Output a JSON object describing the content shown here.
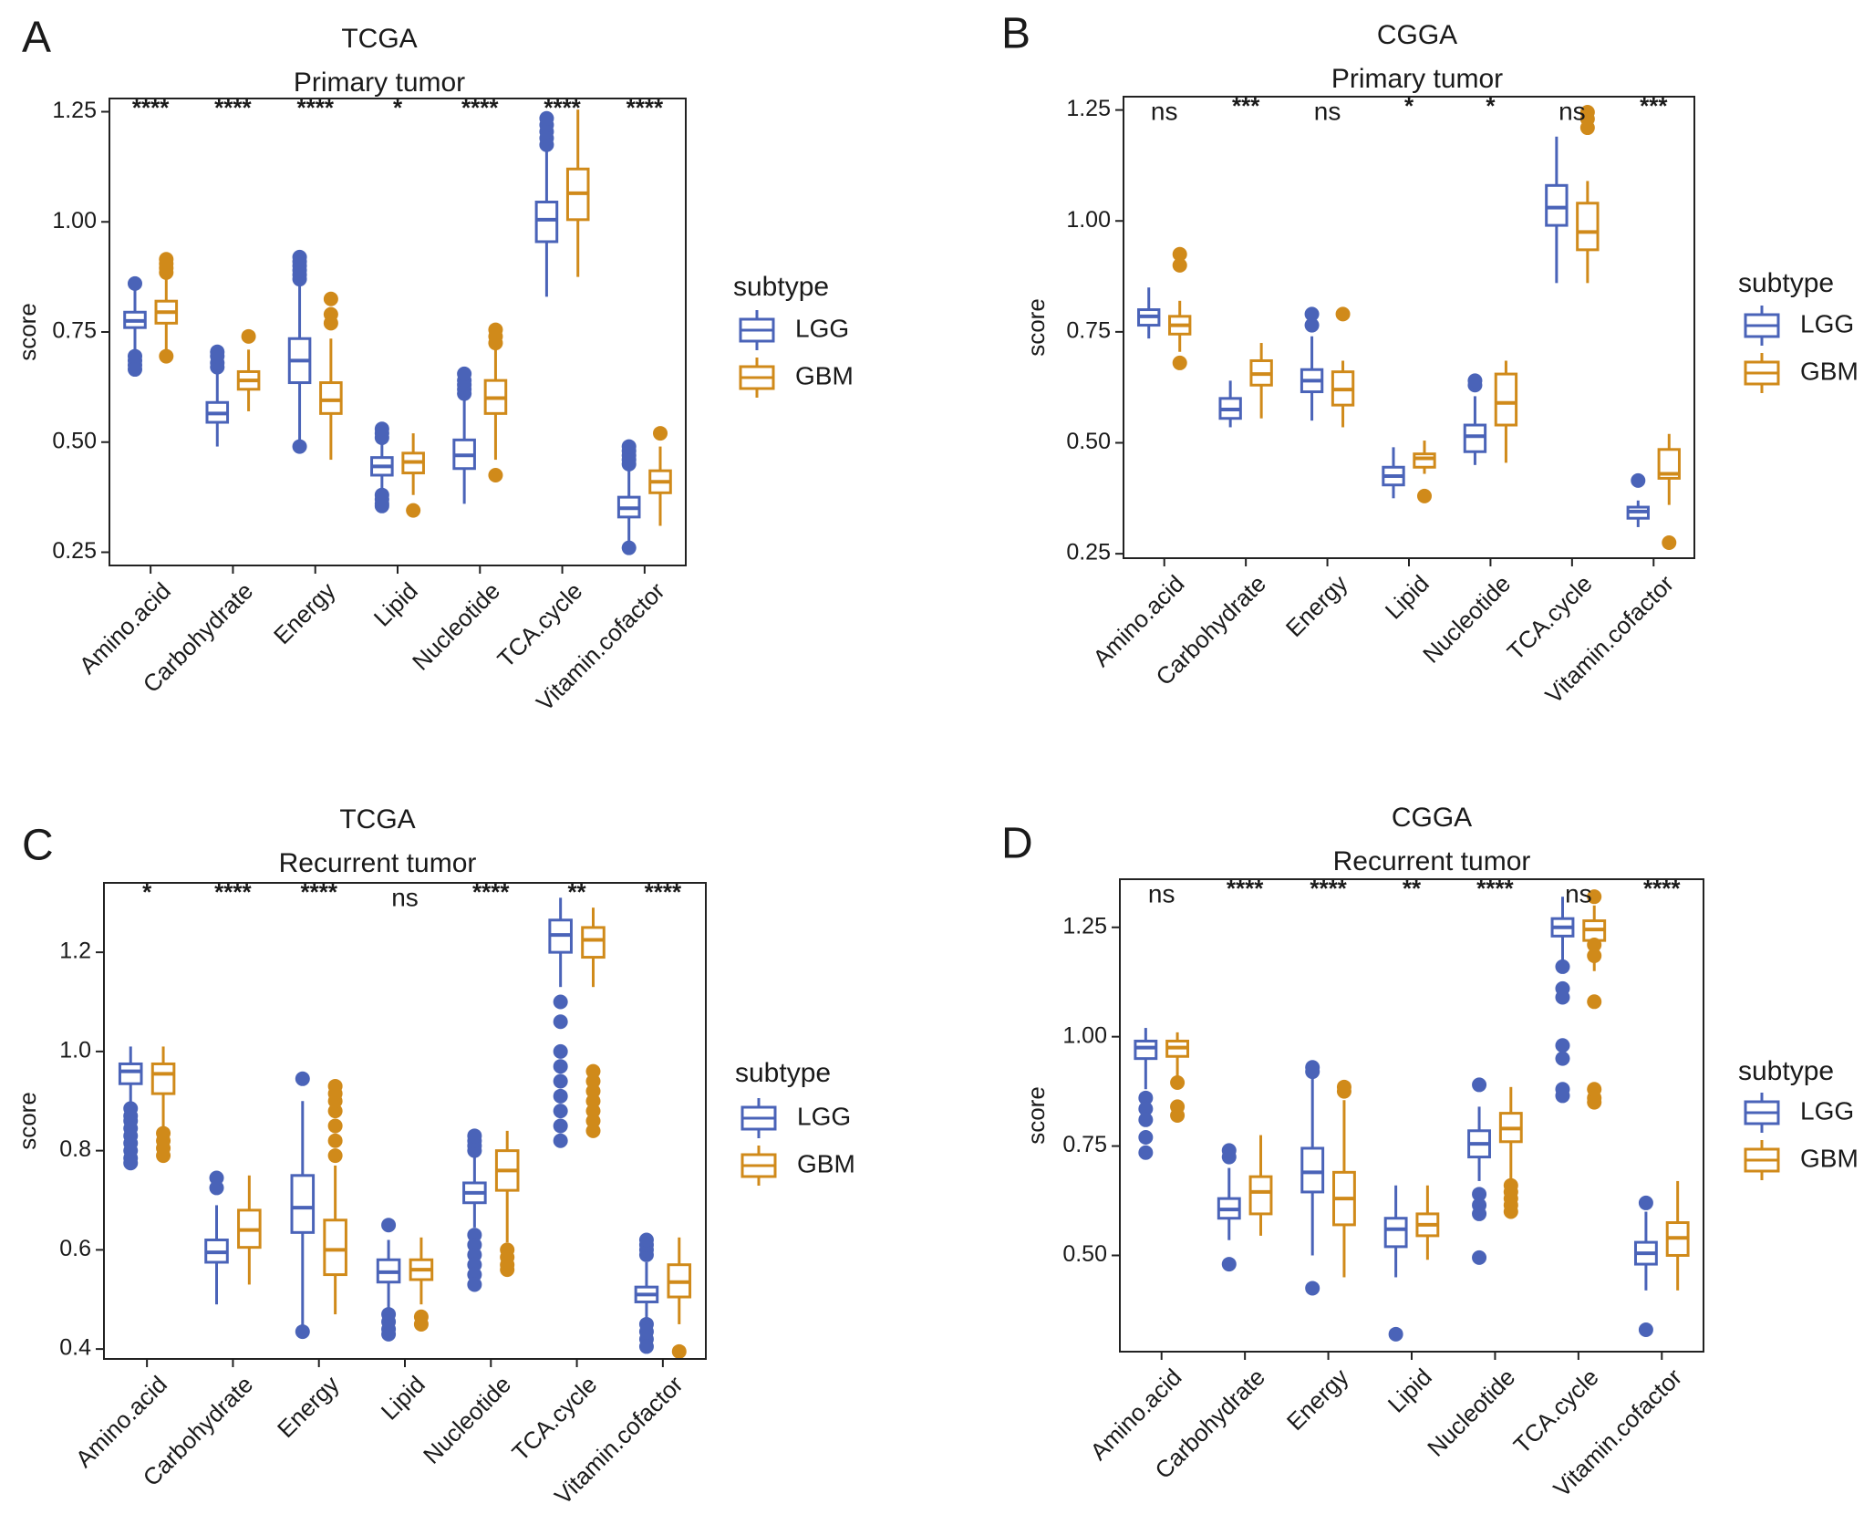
{
  "legend": {
    "title": "subtype",
    "entries": [
      {
        "name": "LGG",
        "color": "#4A63B8"
      },
      {
        "name": "GBM",
        "color": "#D08A1A"
      }
    ]
  },
  "y_axis_label": "score",
  "categories": [
    "Amino.acid",
    "Carbohydrate",
    "Energy",
    "Lipid",
    "Nucleotide",
    "TCA.cycle",
    "Vitamin.cofactor"
  ],
  "chart_data": [
    {
      "panel_letter": "A",
      "type": "boxplot",
      "title": "TCGA",
      "subtitle": "Primary tumor",
      "ylabel": "score",
      "ylim": [
        0.22,
        1.28
      ],
      "yticks": [
        0.25,
        0.5,
        0.75,
        1.0,
        1.25
      ],
      "ytick_labels": [
        "0.25",
        "0.50",
        "0.75",
        "1.00",
        "1.25"
      ],
      "significance": [
        "****",
        "****",
        "****",
        "*",
        "****",
        "****",
        "****"
      ],
      "series": [
        {
          "name": "LGG",
          "boxes": [
            {
              "wlo": 0.69,
              "q1": 0.76,
              "med": 0.775,
              "q3": 0.795,
              "whi": 0.85,
              "outliers": [
                0.86,
                0.695,
                0.685,
                0.675,
                0.665
              ]
            },
            {
              "wlo": 0.49,
              "q1": 0.545,
              "med": 0.565,
              "q3": 0.59,
              "whi": 0.655,
              "outliers": [
                0.67,
                0.68,
                0.695,
                0.705
              ]
            },
            {
              "wlo": 0.49,
              "q1": 0.635,
              "med": 0.685,
              "q3": 0.735,
              "whi": 0.855,
              "outliers": [
                0.87,
                0.88,
                0.89,
                0.9,
                0.91,
                0.92,
                0.49
              ]
            },
            {
              "wlo": 0.38,
              "q1": 0.425,
              "med": 0.445,
              "q3": 0.465,
              "whi": 0.505,
              "outliers": [
                0.51,
                0.52,
                0.53,
                0.38,
                0.37,
                0.36,
                0.355
              ]
            },
            {
              "wlo": 0.36,
              "q1": 0.44,
              "med": 0.47,
              "q3": 0.505,
              "whi": 0.6,
              "outliers": [
                0.61,
                0.62,
                0.63,
                0.64,
                0.655
              ]
            },
            {
              "wlo": 0.83,
              "q1": 0.955,
              "med": 1.005,
              "q3": 1.045,
              "whi": 1.165,
              "outliers": [
                1.175,
                1.19,
                1.205,
                1.22,
                1.235
              ]
            },
            {
              "wlo": 0.27,
              "q1": 0.33,
              "med": 0.35,
              "q3": 0.375,
              "whi": 0.44,
              "outliers": [
                0.45,
                0.46,
                0.47,
                0.48,
                0.49,
                0.26
              ]
            }
          ]
        },
        {
          "name": "GBM",
          "boxes": [
            {
              "wlo": 0.71,
              "q1": 0.77,
              "med": 0.795,
              "q3": 0.82,
              "whi": 0.875,
              "outliers": [
                0.885,
                0.895,
                0.905,
                0.915,
                0.695
              ]
            },
            {
              "wlo": 0.57,
              "q1": 0.62,
              "med": 0.64,
              "q3": 0.66,
              "whi": 0.71,
              "outliers": [
                0.74
              ]
            },
            {
              "wlo": 0.46,
              "q1": 0.565,
              "med": 0.595,
              "q3": 0.635,
              "whi": 0.735,
              "outliers": [
                0.77,
                0.79,
                0.825
              ]
            },
            {
              "wlo": 0.38,
              "q1": 0.43,
              "med": 0.455,
              "q3": 0.475,
              "whi": 0.52,
              "outliers": [
                0.345
              ]
            },
            {
              "wlo": 0.46,
              "q1": 0.565,
              "med": 0.6,
              "q3": 0.64,
              "whi": 0.715,
              "outliers": [
                0.725,
                0.74,
                0.755,
                0.425
              ]
            },
            {
              "wlo": 0.875,
              "q1": 1.005,
              "med": 1.065,
              "q3": 1.12,
              "whi": 1.255,
              "outliers": []
            },
            {
              "wlo": 0.31,
              "q1": 0.385,
              "med": 0.41,
              "q3": 0.435,
              "whi": 0.49,
              "outliers": [
                0.52
              ]
            }
          ]
        }
      ]
    },
    {
      "panel_letter": "B",
      "type": "boxplot",
      "title": "CGGA",
      "subtitle": "Primary tumor",
      "ylabel": "score",
      "ylim": [
        0.24,
        1.28
      ],
      "yticks": [
        0.25,
        0.5,
        0.75,
        1.0,
        1.25
      ],
      "ytick_labels": [
        "0.25",
        "0.50",
        "0.75",
        "1.00",
        "1.25"
      ],
      "significance": [
        "ns",
        "***",
        "ns",
        "*",
        "*",
        "ns",
        "***"
      ],
      "series": [
        {
          "name": "LGG",
          "boxes": [
            {
              "wlo": 0.735,
              "q1": 0.765,
              "med": 0.785,
              "q3": 0.8,
              "whi": 0.85,
              "outliers": []
            },
            {
              "wlo": 0.535,
              "q1": 0.555,
              "med": 0.575,
              "q3": 0.6,
              "whi": 0.64,
              "outliers": []
            },
            {
              "wlo": 0.55,
              "q1": 0.615,
              "med": 0.64,
              "q3": 0.665,
              "whi": 0.74,
              "outliers": [
                0.765,
                0.79
              ]
            },
            {
              "wlo": 0.375,
              "q1": 0.405,
              "med": 0.425,
              "q3": 0.445,
              "whi": 0.49,
              "outliers": []
            },
            {
              "wlo": 0.45,
              "q1": 0.48,
              "med": 0.515,
              "q3": 0.54,
              "whi": 0.605,
              "outliers": [
                0.63,
                0.64
              ]
            },
            {
              "wlo": 0.86,
              "q1": 0.99,
              "med": 1.03,
              "q3": 1.08,
              "whi": 1.19,
              "outliers": []
            },
            {
              "wlo": 0.31,
              "q1": 0.33,
              "med": 0.345,
              "q3": 0.355,
              "whi": 0.37,
              "outliers": [
                0.415
              ]
            }
          ]
        },
        {
          "name": "GBM",
          "boxes": [
            {
              "wlo": 0.705,
              "q1": 0.745,
              "med": 0.765,
              "q3": 0.785,
              "whi": 0.82,
              "outliers": [
                0.925,
                0.9,
                0.68
              ]
            },
            {
              "wlo": 0.555,
              "q1": 0.63,
              "med": 0.655,
              "q3": 0.685,
              "whi": 0.725,
              "outliers": []
            },
            {
              "wlo": 0.535,
              "q1": 0.585,
              "med": 0.62,
              "q3": 0.66,
              "whi": 0.685,
              "outliers": [
                0.79
              ]
            },
            {
              "wlo": 0.43,
              "q1": 0.445,
              "med": 0.465,
              "q3": 0.475,
              "whi": 0.505,
              "outliers": [
                0.38
              ]
            },
            {
              "wlo": 0.455,
              "q1": 0.54,
              "med": 0.59,
              "q3": 0.655,
              "whi": 0.685,
              "outliers": []
            },
            {
              "wlo": 0.86,
              "q1": 0.935,
              "med": 0.975,
              "q3": 1.04,
              "whi": 1.09,
              "outliers": [
                1.245,
                1.23,
                1.21
              ]
            },
            {
              "wlo": 0.36,
              "q1": 0.42,
              "med": 0.43,
              "q3": 0.485,
              "whi": 0.52,
              "outliers": [
                0.275
              ]
            }
          ]
        }
      ]
    },
    {
      "panel_letter": "C",
      "type": "boxplot",
      "title": "TCGA",
      "subtitle": "Recurrent tumor",
      "ylabel": "score",
      "ylim": [
        0.38,
        1.34
      ],
      "yticks": [
        0.4,
        0.6,
        0.8,
        1.0,
        1.2
      ],
      "ytick_labels": [
        "0.4",
        "0.6",
        "0.8",
        "1.0",
        "1.2"
      ],
      "significance": [
        "*",
        "****",
        "****",
        "ns",
        "****",
        "**",
        "****"
      ],
      "series": [
        {
          "name": "LGG",
          "boxes": [
            {
              "wlo": 0.89,
              "q1": 0.935,
              "med": 0.96,
              "q3": 0.975,
              "whi": 1.01,
              "outliers": [
                0.885,
                0.87,
                0.86,
                0.845,
                0.83,
                0.815,
                0.8,
                0.785,
                0.775
              ]
            },
            {
              "wlo": 0.49,
              "q1": 0.575,
              "med": 0.595,
              "q3": 0.62,
              "whi": 0.69,
              "outliers": [
                0.725,
                0.745
              ]
            },
            {
              "wlo": 0.44,
              "q1": 0.635,
              "med": 0.685,
              "q3": 0.75,
              "whi": 0.9,
              "outliers": [
                0.945,
                0.435
              ]
            },
            {
              "wlo": 0.48,
              "q1": 0.535,
              "med": 0.555,
              "q3": 0.58,
              "whi": 0.62,
              "outliers": [
                0.65,
                0.47,
                0.455,
                0.44,
                0.43
              ]
            },
            {
              "wlo": 0.645,
              "q1": 0.695,
              "med": 0.715,
              "q3": 0.735,
              "whi": 0.79,
              "outliers": [
                0.8,
                0.81,
                0.82,
                0.83,
                0.63,
                0.61,
                0.59,
                0.57,
                0.55,
                0.53
              ]
            },
            {
              "wlo": 1.13,
              "q1": 1.2,
              "med": 1.235,
              "q3": 1.265,
              "whi": 1.31,
              "outliers": [
                1.1,
                1.06,
                1.0,
                0.97,
                0.94,
                0.91,
                0.88,
                0.85,
                0.82
              ]
            },
            {
              "wlo": 0.46,
              "q1": 0.495,
              "med": 0.51,
              "q3": 0.525,
              "whi": 0.575,
              "outliers": [
                0.59,
                0.6,
                0.61,
                0.62,
                0.45,
                0.435,
                0.42,
                0.405
              ]
            }
          ]
        },
        {
          "name": "GBM",
          "boxes": [
            {
              "wlo": 0.84,
              "q1": 0.915,
              "med": 0.955,
              "q3": 0.975,
              "whi": 1.01,
              "outliers": [
                0.835,
                0.82,
                0.805,
                0.79
              ]
            },
            {
              "wlo": 0.53,
              "q1": 0.605,
              "med": 0.64,
              "q3": 0.68,
              "whi": 0.75,
              "outliers": []
            },
            {
              "wlo": 0.47,
              "q1": 0.55,
              "med": 0.6,
              "q3": 0.66,
              "whi": 0.77,
              "outliers": [
                0.79,
                0.82,
                0.85,
                0.88,
                0.9,
                0.915,
                0.93
              ]
            },
            {
              "wlo": 0.49,
              "q1": 0.54,
              "med": 0.56,
              "q3": 0.58,
              "whi": 0.625,
              "outliers": [
                0.465,
                0.45
              ]
            },
            {
              "wlo": 0.615,
              "q1": 0.72,
              "med": 0.76,
              "q3": 0.8,
              "whi": 0.84,
              "outliers": [
                0.6,
                0.585,
                0.57,
                0.56
              ]
            },
            {
              "wlo": 1.13,
              "q1": 1.19,
              "med": 1.225,
              "q3": 1.25,
              "whi": 1.29,
              "outliers": [
                0.96,
                0.94,
                0.92,
                0.9,
                0.88,
                0.86,
                0.84
              ]
            },
            {
              "wlo": 0.45,
              "q1": 0.505,
              "med": 0.535,
              "q3": 0.57,
              "whi": 0.625,
              "outliers": [
                0.395
              ]
            }
          ]
        }
      ]
    },
    {
      "panel_letter": "D",
      "type": "boxplot",
      "title": "CGGA",
      "subtitle": "Recurrent tumor",
      "ylabel": "score",
      "ylim": [
        0.28,
        1.36
      ],
      "yticks": [
        0.5,
        0.75,
        1.0,
        1.25
      ],
      "ytick_labels": [
        "0.50",
        "0.75",
        "1.00",
        "1.25"
      ],
      "significance": [
        "ns",
        "****",
        "****",
        "**",
        "****",
        "ns",
        "****"
      ],
      "series": [
        {
          "name": "LGG",
          "boxes": [
            {
              "wlo": 0.88,
              "q1": 0.95,
              "med": 0.975,
              "q3": 0.99,
              "whi": 1.02,
              "outliers": [
                0.86,
                0.835,
                0.81,
                0.77,
                0.735
              ]
            },
            {
              "wlo": 0.535,
              "q1": 0.585,
              "med": 0.605,
              "q3": 0.63,
              "whi": 0.7,
              "outliers": [
                0.725,
                0.74,
                0.48
              ]
            },
            {
              "wlo": 0.5,
              "q1": 0.645,
              "med": 0.69,
              "q3": 0.745,
              "whi": 0.905,
              "outliers": [
                0.92,
                0.93,
                0.425
              ]
            },
            {
              "wlo": 0.45,
              "q1": 0.52,
              "med": 0.56,
              "q3": 0.585,
              "whi": 0.66,
              "outliers": [
                0.32
              ]
            },
            {
              "wlo": 0.67,
              "q1": 0.725,
              "med": 0.755,
              "q3": 0.785,
              "whi": 0.84,
              "outliers": [
                0.89,
                0.64,
                0.615,
                0.595,
                0.495
              ]
            },
            {
              "wlo": 1.17,
              "q1": 1.23,
              "med": 1.25,
              "q3": 1.27,
              "whi": 1.32,
              "outliers": [
                1.16,
                1.11,
                1.09,
                0.98,
                0.95,
                0.88,
                0.865
              ]
            },
            {
              "wlo": 0.42,
              "q1": 0.48,
              "med": 0.505,
              "q3": 0.53,
              "whi": 0.6,
              "outliers": [
                0.62,
                0.33
              ]
            }
          ]
        },
        {
          "name": "GBM",
          "boxes": [
            {
              "wlo": 0.9,
              "q1": 0.955,
              "med": 0.975,
              "q3": 0.99,
              "whi": 1.01,
              "outliers": [
                0.895,
                0.84,
                0.82
              ]
            },
            {
              "wlo": 0.545,
              "q1": 0.595,
              "med": 0.645,
              "q3": 0.68,
              "whi": 0.775,
              "outliers": []
            },
            {
              "wlo": 0.45,
              "q1": 0.57,
              "med": 0.63,
              "q3": 0.69,
              "whi": 0.855,
              "outliers": [
                0.875,
                0.885
              ]
            },
            {
              "wlo": 0.49,
              "q1": 0.545,
              "med": 0.57,
              "q3": 0.595,
              "whi": 0.66,
              "outliers": []
            },
            {
              "wlo": 0.67,
              "q1": 0.76,
              "med": 0.79,
              "q3": 0.825,
              "whi": 0.885,
              "outliers": [
                0.66,
                0.645,
                0.63,
                0.615,
                0.6
              ]
            },
            {
              "wlo": 1.15,
              "q1": 1.22,
              "med": 1.245,
              "q3": 1.265,
              "whi": 1.3,
              "outliers": [
                1.32,
                1.21,
                1.185,
                1.08,
                0.88,
                0.86,
                0.85
              ]
            },
            {
              "wlo": 0.42,
              "q1": 0.5,
              "med": 0.54,
              "q3": 0.575,
              "whi": 0.67,
              "outliers": []
            }
          ]
        }
      ]
    }
  ]
}
